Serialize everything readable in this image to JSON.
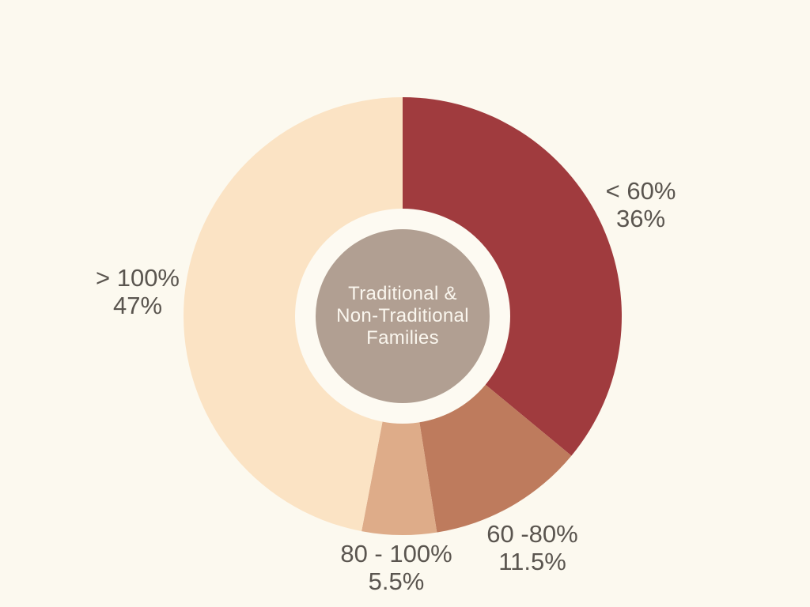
{
  "chart_data": {
    "type": "pie",
    "subtype": "donut",
    "title": "Traditional & Non-Traditional Families",
    "center_lines": [
      "Traditional &",
      "Non-Traditional",
      "Families"
    ],
    "direction": "clockwise",
    "start_angle_deg": 0,
    "legend_position": "none",
    "slices": [
      {
        "label": "< 60%",
        "percent_label": "36%",
        "value": 36,
        "color": "#A03B3E"
      },
      {
        "label": "60 -80%",
        "percent_label": "11.5%",
        "value": 11.5,
        "color": "#BE7B5D"
      },
      {
        "label": "80 - 100%",
        "percent_label": "5.5%",
        "value": 5.5,
        "color": "#DEAC89"
      },
      {
        "label": "> 100%",
        "percent_label": "47%",
        "value": 47,
        "color": "#FBE3C4"
      }
    ],
    "colors": {
      "background": "#FCF9EF",
      "ring": "#FDFAF2",
      "center_circle": "#B19F92",
      "label_text": "#5A554F",
      "center_text": "#FAF6EE"
    }
  }
}
